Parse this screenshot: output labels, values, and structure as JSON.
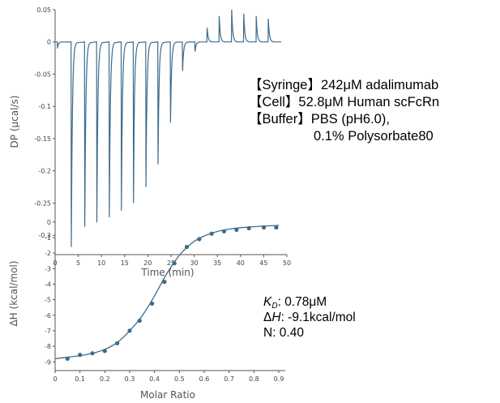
{
  "colors": {
    "series": "#3d6b8c",
    "axis": "#555555",
    "text": "#000000",
    "fit_line": "#3d6b8c"
  },
  "conditions": {
    "syringe": "【Syringe】242μM adalimumab",
    "cell": "【Cell】52.8μM Human scFcRn",
    "buffer": "【Buffer】PBS (pH6.0),",
    "buffer2": "0.1% Polysorbate80"
  },
  "fit_results": {
    "kd_symbol": "K",
    "kd_sub": "D",
    "kd_value": ": 0.78μM",
    "dh_symbol": "H",
    "dh_prefix": "Δ",
    "dh_value": ": -9.1kcal/mol",
    "n": "N: 0.40"
  },
  "chart_data": [
    {
      "type": "line",
      "title": "",
      "xlabel": "Time (min)",
      "ylabel": "DP (μcal/s)",
      "xlim": [
        0,
        50
      ],
      "ylim": [
        -0.33,
        0.05
      ],
      "xticks": [
        0,
        5,
        10,
        15,
        20,
        25,
        30,
        35,
        40,
        45,
        50
      ],
      "yticks": [
        0.05,
        0,
        -0.05,
        -0.1,
        -0.15,
        -0.2,
        -0.25,
        -0.3
      ],
      "ytick_labels": [
        "0.05",
        "0",
        "-0.05",
        "-0.1",
        "-0.15",
        "-0.2",
        "-0.25",
        "-0.3"
      ],
      "grid": false,
      "baseline": 0.0,
      "injections": [
        {
          "time": 0.5,
          "peak": -0.01
        },
        {
          "time": 3.5,
          "peak": -0.318
        },
        {
          "time": 6.4,
          "peak": -0.287
        },
        {
          "time": 9.0,
          "peak": -0.28
        },
        {
          "time": 11.7,
          "peak": -0.272
        },
        {
          "time": 14.3,
          "peak": -0.262
        },
        {
          "time": 16.9,
          "peak": -0.25
        },
        {
          "time": 19.6,
          "peak": -0.225
        },
        {
          "time": 22.2,
          "peak": -0.19
        },
        {
          "time": 24.9,
          "peak": -0.125
        },
        {
          "time": 27.5,
          "peak": -0.045
        },
        {
          "time": 30.2,
          "peak": -0.015
        },
        {
          "time": 32.8,
          "peak": 0.022
        },
        {
          "time": 35.4,
          "peak": 0.04
        },
        {
          "time": 38.1,
          "peak": 0.05
        },
        {
          "time": 40.7,
          "peak": 0.044
        },
        {
          "time": 43.4,
          "peak": 0.04
        },
        {
          "time": 46.0,
          "peak": 0.036
        }
      ]
    },
    {
      "type": "scatter",
      "title": "",
      "xlabel": "Molar Ratio",
      "ylabel": "ΔH (kcal/mol)",
      "xlim": [
        0,
        0.9
      ],
      "ylim": [
        -9.3,
        0.2
      ],
      "xticks": [
        0,
        0.1,
        0.2,
        0.3,
        0.4,
        0.5,
        0.6,
        0.7,
        0.8,
        0.9
      ],
      "xtick_labels": [
        "0",
        "0.1",
        "0.2",
        "0.3",
        "0.4",
        "0.5",
        "0.6",
        "0.7",
        "0.8",
        "0.9"
      ],
      "yticks": [
        0,
        -1,
        -2,
        -3,
        -4,
        -5,
        -6,
        -7,
        -8,
        -9
      ],
      "grid": false,
      "series": [
        {
          "points": [
            [
              0.05,
              -8.8
            ],
            [
              0.1,
              -8.55
            ],
            [
              0.15,
              -8.45
            ],
            [
              0.2,
              -8.3
            ],
            [
              0.25,
              -7.8
            ],
            [
              0.3,
              -7.0
            ],
            [
              0.34,
              -6.35
            ],
            [
              0.39,
              -5.25
            ],
            [
              0.44,
              -3.85
            ],
            [
              0.48,
              -2.65
            ],
            [
              0.53,
              -1.6
            ],
            [
              0.58,
              -1.1
            ],
            [
              0.63,
              -0.75
            ],
            [
              0.68,
              -0.6
            ],
            [
              0.73,
              -0.5
            ],
            [
              0.78,
              -0.4
            ],
            [
              0.84,
              -0.35
            ],
            [
              0.89,
              -0.35
            ]
          ]
        }
      ],
      "fit": {
        "x": [
          0.0,
          0.05,
          0.1,
          0.15,
          0.2,
          0.25,
          0.3,
          0.35,
          0.4,
          0.45,
          0.5,
          0.55,
          0.6,
          0.65,
          0.7,
          0.75,
          0.8,
          0.85,
          0.9
        ],
        "y": [
          -8.8,
          -8.7,
          -8.6,
          -8.45,
          -8.2,
          -7.75,
          -7.0,
          -6.05,
          -4.75,
          -3.3,
          -2.15,
          -1.35,
          -0.9,
          -0.62,
          -0.46,
          -0.36,
          -0.3,
          -0.25,
          -0.22
        ]
      }
    }
  ]
}
